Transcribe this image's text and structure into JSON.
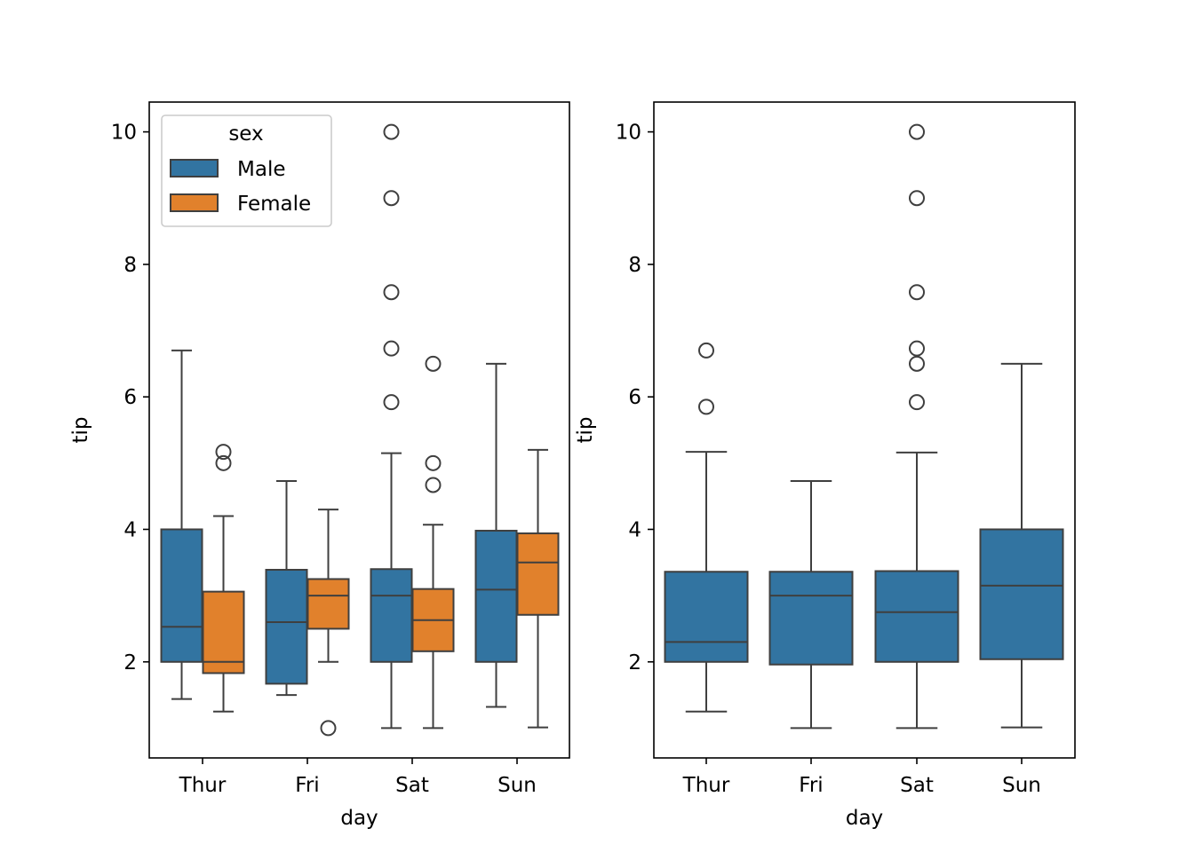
{
  "colors": {
    "male": "#3274a1",
    "female": "#e1812c",
    "edge": "#3f3f3f"
  },
  "chart_data": [
    {
      "type": "box",
      "xlabel": "day",
      "ylabel": "tip",
      "ylim": [
        0.55,
        10.45
      ],
      "yticks": [
        2,
        4,
        6,
        8,
        10
      ],
      "categories": [
        "Thur",
        "Fri",
        "Sat",
        "Sun"
      ],
      "legend": {
        "title": "sex",
        "placement": "upper-left"
      },
      "series": [
        {
          "name": "Male",
          "color": "#3274a1",
          "boxes": [
            {
              "category": "Thur",
              "whislo": 1.44,
              "q1": 2.0,
              "med": 2.53,
              "q3": 4.0,
              "whishi": 6.7,
              "fliers": []
            },
            {
              "category": "Fri",
              "whislo": 1.5,
              "q1": 1.67,
              "med": 2.6,
              "q3": 3.39,
              "whishi": 4.73,
              "fliers": []
            },
            {
              "category": "Sat",
              "whislo": 1.0,
              "q1": 2.0,
              "med": 3.0,
              "q3": 3.4,
              "whishi": 5.15,
              "fliers": [
                5.92,
                6.73,
                7.58,
                9.0,
                10.0
              ]
            },
            {
              "category": "Sun",
              "whislo": 1.32,
              "q1": 2.0,
              "med": 3.09,
              "q3": 3.98,
              "whishi": 6.5,
              "fliers": []
            }
          ]
        },
        {
          "name": "Female",
          "color": "#e1812c",
          "boxes": [
            {
              "category": "Thur",
              "whislo": 1.25,
              "q1": 1.83,
              "med": 2.0,
              "q3": 3.06,
              "whishi": 4.2,
              "fliers": [
                5.0,
                5.17
              ]
            },
            {
              "category": "Fri",
              "whislo": 2.0,
              "q1": 2.5,
              "med": 3.0,
              "q3": 3.25,
              "whishi": 4.3,
              "fliers": [
                1.0
              ]
            },
            {
              "category": "Sat",
              "whislo": 1.0,
              "q1": 2.16,
              "med": 2.63,
              "q3": 3.1,
              "whishi": 4.07,
              "fliers": [
                4.67,
                5.0,
                6.5
              ]
            },
            {
              "category": "Sun",
              "whislo": 1.01,
              "q1": 2.71,
              "med": 3.5,
              "q3": 3.94,
              "whishi": 5.2,
              "fliers": []
            }
          ]
        }
      ]
    },
    {
      "type": "box",
      "xlabel": "day",
      "ylabel": "tip",
      "ylim": [
        0.55,
        10.45
      ],
      "yticks": [
        2,
        4,
        6,
        8,
        10
      ],
      "categories": [
        "Thur",
        "Fri",
        "Sat",
        "Sun"
      ],
      "series": [
        {
          "color": "#3274a1",
          "boxes": [
            {
              "category": "Thur",
              "whislo": 1.25,
              "q1": 2.0,
              "med": 2.3,
              "q3": 3.36,
              "whishi": 5.17,
              "fliers": [
                5.85,
                6.7
              ]
            },
            {
              "category": "Fri",
              "whislo": 1.0,
              "q1": 1.96,
              "med": 3.0,
              "q3": 3.36,
              "whishi": 4.73,
              "fliers": []
            },
            {
              "category": "Sat",
              "whislo": 1.0,
              "q1": 2.0,
              "med": 2.75,
              "q3": 3.37,
              "whishi": 5.16,
              "fliers": [
                5.92,
                6.5,
                6.73,
                7.58,
                9.0,
                10.0
              ]
            },
            {
              "category": "Sun",
              "whislo": 1.01,
              "q1": 2.04,
              "med": 3.15,
              "q3": 4.0,
              "whishi": 6.5,
              "fliers": []
            }
          ]
        }
      ]
    }
  ]
}
